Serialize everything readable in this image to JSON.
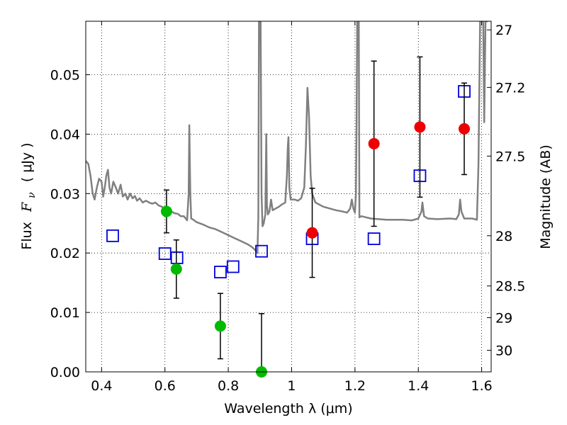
{
  "chart_data": {
    "type": "scatter",
    "xlabel": "Wavelength  λ (μm)",
    "ylabel": "Flux  F_ν  ( μJy )",
    "ylabel_parts": {
      "prefix": "Flux",
      "symbol": "F",
      "subscript": "ν",
      "unit": "( μJy )"
    },
    "ylabel_right": "Magnitude (AB)",
    "xlim": [
      0.35,
      1.63
    ],
    "ylim": [
      0.0,
      0.059
    ],
    "x_ticks": [
      0.4,
      0.6,
      0.8,
      1.0,
      1.2,
      1.4,
      1.6
    ],
    "x_tick_labels": [
      "0.4",
      "0.6",
      "0.8",
      "1",
      "1.2",
      "1.4",
      "1.6"
    ],
    "y_ticks": [
      0.0,
      0.01,
      0.02,
      0.03,
      0.04,
      0.05
    ],
    "y_tick_labels": [
      "0.00",
      "0.01",
      "0.02",
      "0.03",
      "0.04",
      "0.05"
    ],
    "right_ticks": [
      {
        "mag": 27,
        "label": "27"
      },
      {
        "mag": 27.2,
        "label": "27.2"
      },
      {
        "mag": 27.5,
        "label": "27.5"
      },
      {
        "mag": 28,
        "label": "28"
      },
      {
        "mag": 28.5,
        "label": "28.5"
      },
      {
        "mag": 29,
        "label": "29"
      },
      {
        "mag": 30,
        "label": "30"
      }
    ],
    "grid": true,
    "series": [
      {
        "marker": "circle",
        "color": "#00bb00",
        "points": [
          {
            "x": 0.605,
            "y": 0.027,
            "err": 0.0036
          },
          {
            "x": 0.636,
            "y": 0.0173,
            "err": 0.0049
          },
          {
            "x": 0.775,
            "y": 0.0077,
            "err": 0.0055
          },
          {
            "x": 0.905,
            "y": 0.0,
            "err": 0.0098
          }
        ]
      },
      {
        "marker": "circle",
        "color": "#ee0000",
        "points": [
          {
            "x": 1.065,
            "y": 0.0234,
            "err": 0.0075
          },
          {
            "x": 1.26,
            "y": 0.0384,
            "err": 0.0139
          },
          {
            "x": 1.405,
            "y": 0.0412,
            "err": 0.0118
          },
          {
            "x": 1.545,
            "y": 0.0409,
            "err": 0.0077
          }
        ]
      },
      {
        "marker": "square-open",
        "color": "#0000dd",
        "points": [
          {
            "x": 0.435,
            "y": 0.0229
          },
          {
            "x": 0.6,
            "y": 0.0199
          },
          {
            "x": 0.638,
            "y": 0.0192
          },
          {
            "x": 0.775,
            "y": 0.0168
          },
          {
            "x": 0.815,
            "y": 0.0177
          },
          {
            "x": 0.905,
            "y": 0.0203
          },
          {
            "x": 1.065,
            "y": 0.0224
          },
          {
            "x": 1.26,
            "y": 0.0224
          },
          {
            "x": 1.405,
            "y": 0.033
          },
          {
            "x": 1.545,
            "y": 0.0472
          }
        ]
      },
      {
        "marker": "line",
        "color": "#808080",
        "points": [
          [
            0.35,
            0.0355
          ],
          [
            0.358,
            0.035
          ],
          [
            0.365,
            0.033
          ],
          [
            0.372,
            0.03
          ],
          [
            0.378,
            0.029
          ],
          [
            0.385,
            0.031
          ],
          [
            0.392,
            0.0325
          ],
          [
            0.4,
            0.032
          ],
          [
            0.405,
            0.0295
          ],
          [
            0.41,
            0.031
          ],
          [
            0.415,
            0.033
          ],
          [
            0.42,
            0.034
          ],
          [
            0.425,
            0.031
          ],
          [
            0.43,
            0.03
          ],
          [
            0.437,
            0.032
          ],
          [
            0.445,
            0.031
          ],
          [
            0.452,
            0.03
          ],
          [
            0.46,
            0.0315
          ],
          [
            0.467,
            0.0295
          ],
          [
            0.475,
            0.03
          ],
          [
            0.482,
            0.029
          ],
          [
            0.49,
            0.03
          ],
          [
            0.498,
            0.0292
          ],
          [
            0.505,
            0.0296
          ],
          [
            0.512,
            0.0288
          ],
          [
            0.52,
            0.0292
          ],
          [
            0.53,
            0.0285
          ],
          [
            0.54,
            0.0288
          ],
          [
            0.55,
            0.0285
          ],
          [
            0.56,
            0.0283
          ],
          [
            0.57,
            0.0285
          ],
          [
            0.58,
            0.028
          ],
          [
            0.59,
            0.0278
          ],
          [
            0.6,
            0.0274
          ],
          [
            0.61,
            0.0272
          ],
          [
            0.62,
            0.027
          ],
          [
            0.63,
            0.0267
          ],
          [
            0.64,
            0.0266
          ],
          [
            0.65,
            0.0262
          ],
          [
            0.66,
            0.0262
          ],
          [
            0.67,
            0.0255
          ],
          [
            0.675,
            0.03
          ],
          [
            0.677,
            0.0415
          ],
          [
            0.68,
            0.03
          ],
          [
            0.683,
            0.0258
          ],
          [
            0.69,
            0.0256
          ],
          [
            0.7,
            0.0252
          ],
          [
            0.72,
            0.0248
          ],
          [
            0.74,
            0.0243
          ],
          [
            0.76,
            0.024
          ],
          [
            0.78,
            0.0235
          ],
          [
            0.8,
            0.023
          ],
          [
            0.82,
            0.0225
          ],
          [
            0.84,
            0.022
          ],
          [
            0.86,
            0.0215
          ],
          [
            0.875,
            0.021
          ],
          [
            0.885,
            0.0205
          ],
          [
            0.892,
            0.02
          ],
          [
            0.895,
            0.026
          ],
          [
            0.897,
            0.059
          ],
          [
            0.902,
            0.059
          ],
          [
            0.905,
            0.03
          ],
          [
            0.908,
            0.0245
          ],
          [
            0.912,
            0.025
          ],
          [
            0.917,
            0.0265
          ],
          [
            0.92,
            0.04
          ],
          [
            0.922,
            0.028
          ],
          [
            0.925,
            0.0265
          ],
          [
            0.93,
            0.027
          ],
          [
            0.935,
            0.029
          ],
          [
            0.94,
            0.0272
          ],
          [
            0.95,
            0.0275
          ],
          [
            0.96,
            0.0278
          ],
          [
            0.97,
            0.0282
          ],
          [
            0.98,
            0.0285
          ],
          [
            0.985,
            0.033
          ],
          [
            0.988,
            0.038
          ],
          [
            0.99,
            0.0395
          ],
          [
            0.993,
            0.031
          ],
          [
            0.997,
            0.029
          ],
          [
            1.01,
            0.029
          ],
          [
            1.02,
            0.0288
          ],
          [
            1.03,
            0.0292
          ],
          [
            1.04,
            0.031
          ],
          [
            1.045,
            0.038
          ],
          [
            1.05,
            0.0478
          ],
          [
            1.055,
            0.043
          ],
          [
            1.06,
            0.033
          ],
          [
            1.065,
            0.03
          ],
          [
            1.075,
            0.0285
          ],
          [
            1.1,
            0.0278
          ],
          [
            1.12,
            0.0275
          ],
          [
            1.14,
            0.0272
          ],
          [
            1.16,
            0.027
          ],
          [
            1.175,
            0.0268
          ],
          [
            1.185,
            0.0275
          ],
          [
            1.19,
            0.029
          ],
          [
            1.195,
            0.0275
          ],
          [
            1.2,
            0.0268
          ],
          [
            1.203,
            0.03
          ],
          [
            1.205,
            0.042
          ],
          [
            1.207,
            0.059
          ],
          [
            1.212,
            0.059
          ],
          [
            1.214,
            0.026
          ],
          [
            1.22,
            0.0262
          ],
          [
            1.25,
            0.0258
          ],
          [
            1.3,
            0.0256
          ],
          [
            1.35,
            0.0256
          ],
          [
            1.38,
            0.0255
          ],
          [
            1.4,
            0.0258
          ],
          [
            1.41,
            0.027
          ],
          [
            1.413,
            0.0285
          ],
          [
            1.418,
            0.0262
          ],
          [
            1.43,
            0.0258
          ],
          [
            1.46,
            0.0257
          ],
          [
            1.5,
            0.0258
          ],
          [
            1.52,
            0.0257
          ],
          [
            1.528,
            0.0265
          ],
          [
            1.532,
            0.029
          ],
          [
            1.536,
            0.027
          ],
          [
            1.545,
            0.0258
          ],
          [
            1.57,
            0.0258
          ],
          [
            1.585,
            0.0256
          ],
          [
            1.59,
            0.035
          ],
          [
            1.595,
            0.059
          ],
          [
            1.605,
            0.059
          ],
          [
            1.608,
            0.042
          ],
          [
            1.612,
            0.059
          ],
          [
            1.62,
            0.059
          ]
        ]
      }
    ]
  }
}
